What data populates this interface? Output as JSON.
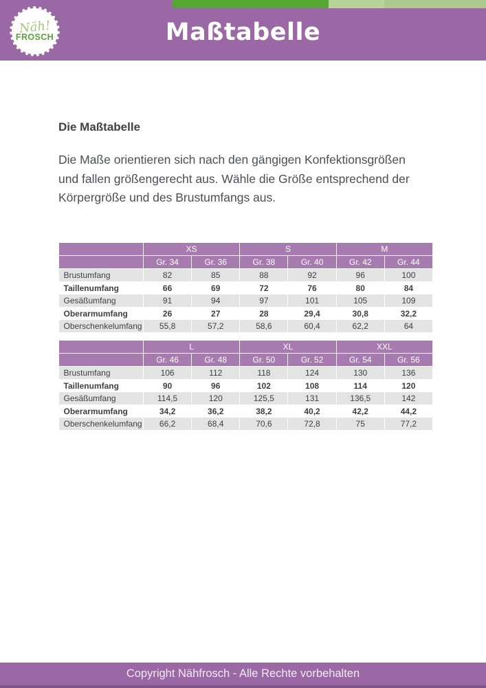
{
  "header": {
    "logo_line1": "Näh!",
    "logo_line2": "FROSCH",
    "title": "Maßtabelle"
  },
  "intro": {
    "heading": "Die Maßtabelle",
    "lines": [
      "Die Maße orientieren sich nach den gängigen Konfektionsgrößen",
      "und fallen größengerecht aus. Wähle die Größe entsprechend der",
      "Körpergröße und des Brustumfangs aus."
    ]
  },
  "tables": [
    {
      "name": "sizes-xs-s-m",
      "groups": [
        {
          "label": "XS",
          "sizes": [
            "Gr. 34",
            "Gr. 36"
          ]
        },
        {
          "label": "S",
          "sizes": [
            "Gr. 38",
            "Gr. 40"
          ]
        },
        {
          "label": "M",
          "sizes": [
            "Gr. 42",
            "Gr. 44"
          ]
        }
      ],
      "rows": [
        {
          "label": "Brustumfang",
          "values": [
            "82",
            "85",
            "88",
            "92",
            "96",
            "100"
          ],
          "bold": false
        },
        {
          "label": "Taillenumfang",
          "values": [
            "66",
            "69",
            "72",
            "76",
            "80",
            "84"
          ],
          "bold": true
        },
        {
          "label": "Gesäßumfang",
          "values": [
            "91",
            "94",
            "97",
            "101",
            "105",
            "109"
          ],
          "bold": false
        },
        {
          "label": "Oberarmumfang",
          "values": [
            "26",
            "27",
            "28",
            "29,4",
            "30,8",
            "32,2"
          ],
          "bold": true
        },
        {
          "label": "Oberschenkelumfang",
          "values": [
            "55,8",
            "57,2",
            "58,6",
            "60,4",
            "62,2",
            "64"
          ],
          "bold": false
        }
      ]
    },
    {
      "name": "sizes-l-xl-xxl",
      "groups": [
        {
          "label": "L",
          "sizes": [
            "Gr. 46",
            "Gr. 48"
          ]
        },
        {
          "label": "XL",
          "sizes": [
            "Gr. 50",
            "Gr. 52"
          ]
        },
        {
          "label": "XXL",
          "sizes": [
            "Gr. 54",
            "Gr. 56"
          ]
        }
      ],
      "rows": [
        {
          "label": "Brustumfang",
          "values": [
            "106",
            "112",
            "118",
            "124",
            "130",
            "136"
          ],
          "bold": false
        },
        {
          "label": "Taillenumfang",
          "values": [
            "90",
            "96",
            "102",
            "108",
            "114",
            "120"
          ],
          "bold": true
        },
        {
          "label": "Gesäßumfang",
          "values": [
            "114,5",
            "120",
            "125,5",
            "131",
            "136,5",
            "142"
          ],
          "bold": false
        },
        {
          "label": "Oberarmumfang",
          "values": [
            "34,2",
            "36,2",
            "38,2",
            "40,2",
            "42,2",
            "44,2"
          ],
          "bold": true
        },
        {
          "label": "Oberschenkelumfang",
          "values": [
            "66,2",
            "68,4",
            "70,6",
            "72,8",
            "75",
            "77,2"
          ],
          "bold": false
        }
      ]
    }
  ],
  "footer": {
    "text": "Copyright Nähfrosch - Alle Rechte vorbehalten"
  },
  "colors": {
    "header_purple": "#9a68a4",
    "table_header_purple": "#a77bb0",
    "footer_purple": "#9a68a4",
    "footer_dark_edge": "#7e5687",
    "green_dark": "#54a730",
    "green_light_1": "#b9d49b",
    "green_light_2": "#adc98d",
    "row_gray": "#e3e3e3"
  }
}
